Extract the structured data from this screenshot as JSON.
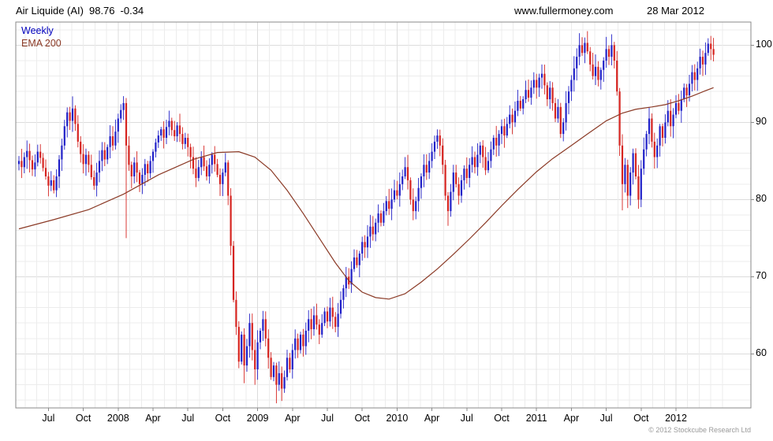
{
  "header": {
    "title": "Air Liquide (AI)",
    "price": "98.76",
    "change": "-0.34",
    "site": "www.fullermoney.com",
    "date": "28 Mar 2012"
  },
  "footer": {
    "copyright": "© 2012 Stockcube Research Ltd"
  },
  "colors": {
    "up_candle": "#2121c8",
    "down_candle": "#d62420",
    "ema": "#8b3a26",
    "legend_weekly": "#0000bd",
    "grid": "#ececec",
    "grid_major": "#dcdcdc",
    "border": "#8a8a8a",
    "text": "#000000",
    "copyright_text": "#9a9a9a"
  },
  "chart_data": {
    "type": "candlestick",
    "timeframe": "Weekly",
    "title": "Air Liquide (AI) weekly candlestick chart with 200-period EMA",
    "legend": [
      {
        "label": "Weekly",
        "color": "#0000bd"
      },
      {
        "label": "EMA 200",
        "color": "#8b3a26"
      }
    ],
    "y_axis": {
      "ticks": [
        60,
        70,
        80,
        90,
        100
      ],
      "range": [
        53,
        103
      ]
    },
    "x_axis": {
      "tick_labels": [
        "Jul",
        "Oct",
        "2008",
        "Apr",
        "Jul",
        "Oct",
        "2009",
        "Apr",
        "Jul",
        "Oct",
        "2010",
        "Apr",
        "Jul",
        "Oct",
        "2011",
        "Apr",
        "Jul",
        "Oct",
        "2012"
      ],
      "tick_week_indices": [
        11,
        24,
        37,
        50,
        63,
        76,
        89,
        102,
        115,
        128,
        141,
        154,
        167,
        180,
        193,
        206,
        219,
        232,
        245
      ],
      "year_tick_indices": [
        37,
        89,
        141,
        193,
        245
      ],
      "weeks_total": 260,
      "start": "Apr 2007",
      "end": "Mar 2012"
    },
    "open_first": 84.6,
    "weekly_closes": [
      85.0,
      84.2,
      85.5,
      86.3,
      85.1,
      83.9,
      84.8,
      86.2,
      85.4,
      84.1,
      83.0,
      81.8,
      82.5,
      81.2,
      83.0,
      85.2,
      87.0,
      89.5,
      91.3,
      90.2,
      91.8,
      89.8,
      87.5,
      85.9,
      84.6,
      85.8,
      84.5,
      82.9,
      81.8,
      83.5,
      85.0,
      86.4,
      85.2,
      86.8,
      88.2,
      87.0,
      88.8,
      90.5,
      91.6,
      92.5,
      87.0,
      84.5,
      83.0,
      84.8,
      83.5,
      82.0,
      83.2,
      84.6,
      83.4,
      85.0,
      86.2,
      87.4,
      88.3,
      89.1,
      88.0,
      89.4,
      90.2,
      89.0,
      88.2,
      89.6,
      88.5,
      87.2,
      88.0,
      86.8,
      85.5,
      84.0,
      82.8,
      84.2,
      85.5,
      84.3,
      83.0,
      84.5,
      85.8,
      84.6,
      83.2,
      82.0,
      83.5,
      84.8,
      80.5,
      74.0,
      67.0,
      63.5,
      59.0,
      62.5,
      58.5,
      61.0,
      64.0,
      60.5,
      58.0,
      61.5,
      63.0,
      64.5,
      62.0,
      59.5,
      57.0,
      58.5,
      56.0,
      57.5,
      55.5,
      57.0,
      59.5,
      58.0,
      60.5,
      62.0,
      60.5,
      62.5,
      61.0,
      63.0,
      64.5,
      63.2,
      65.0,
      63.8,
      62.5,
      64.0,
      65.5,
      64.2,
      66.0,
      64.8,
      63.5,
      65.2,
      67.0,
      68.5,
      70.0,
      69.0,
      71.0,
      72.5,
      71.5,
      73.0,
      74.5,
      73.8,
      75.2,
      76.5,
      75.5,
      77.0,
      78.2,
      77.0,
      78.5,
      79.8,
      78.8,
      80.0,
      81.2,
      80.5,
      82.0,
      83.0,
      84.2,
      82.5,
      80.0,
      78.5,
      79.8,
      81.5,
      83.0,
      84.5,
      83.5,
      85.0,
      86.2,
      87.5,
      88.3,
      87.0,
      84.5,
      80.5,
      78.5,
      81.0,
      83.5,
      82.0,
      80.5,
      82.5,
      84.0,
      82.8,
      84.5,
      85.5,
      84.2,
      85.8,
      87.0,
      85.5,
      83.8,
      85.0,
      86.5,
      88.0,
      87.0,
      88.5,
      89.5,
      88.3,
      89.8,
      91.0,
      90.0,
      91.5,
      92.8,
      91.8,
      93.0,
      94.2,
      93.2,
      94.5,
      95.5,
      94.5,
      95.8,
      96.3,
      94.8,
      93.0,
      94.5,
      92.5,
      90.5,
      92.0,
      88.5,
      90.0,
      92.5,
      94.0,
      95.5,
      97.0,
      98.5,
      100.0,
      99.0,
      100.3,
      99.2,
      97.5,
      96.0,
      97.2,
      95.5,
      96.8,
      98.0,
      99.5,
      98.5,
      100.0,
      98.0,
      94.0,
      87.0,
      82.0,
      84.5,
      80.5,
      83.5,
      86.0,
      83.0,
      80.0,
      84.0,
      86.5,
      88.5,
      90.5,
      87.5,
      85.5,
      87.0,
      89.5,
      88.0,
      90.0,
      91.5,
      89.5,
      91.0,
      92.5,
      91.5,
      93.0,
      94.5,
      93.5,
      95.0,
      96.5,
      95.5,
      97.0,
      98.5,
      97.5,
      99.0,
      100.2,
      99.5,
      98.76
    ],
    "low_overrides": {
      "40": 75.0,
      "84": 56.2,
      "88": 56.0,
      "96": 53.6,
      "98": 53.9,
      "160": 76.6,
      "225": 78.6,
      "227": 78.9,
      "231": 78.8
    },
    "high_overrides": {
      "39": 93.4,
      "211": 101.0,
      "257": 100.9
    },
    "ema200_points": [
      [
        0,
        76.2
      ],
      [
        13,
        77.4
      ],
      [
        26,
        78.7
      ],
      [
        39,
        80.7
      ],
      [
        52,
        83.2
      ],
      [
        65,
        85.2
      ],
      [
        74,
        86.1
      ],
      [
        82,
        86.2
      ],
      [
        88,
        85.5
      ],
      [
        94,
        83.8
      ],
      [
        100,
        81.2
      ],
      [
        106,
        78.2
      ],
      [
        112,
        75.0
      ],
      [
        118,
        71.8
      ],
      [
        123,
        69.5
      ],
      [
        128,
        68.0
      ],
      [
        133,
        67.3
      ],
      [
        138,
        67.1
      ],
      [
        144,
        67.8
      ],
      [
        150,
        69.3
      ],
      [
        156,
        71.0
      ],
      [
        162,
        72.9
      ],
      [
        168,
        74.9
      ],
      [
        174,
        77.0
      ],
      [
        180,
        79.2
      ],
      [
        186,
        81.3
      ],
      [
        193,
        83.6
      ],
      [
        199,
        85.3
      ],
      [
        206,
        87.0
      ],
      [
        212,
        88.5
      ],
      [
        219,
        90.2
      ],
      [
        225,
        91.2
      ],
      [
        230,
        91.7
      ],
      [
        236,
        92.0
      ],
      [
        241,
        92.3
      ],
      [
        246,
        92.8
      ],
      [
        251,
        93.4
      ],
      [
        256,
        94.1
      ],
      [
        259,
        94.5
      ]
    ],
    "last_price": 98.76,
    "last_change": -0.34
  }
}
